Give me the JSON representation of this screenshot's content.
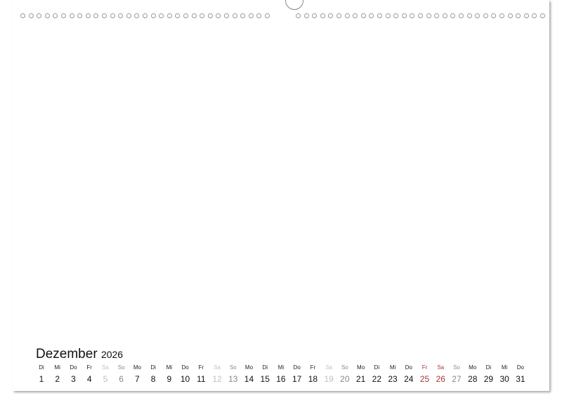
{
  "calendar": {
    "month": "Dezember",
    "year": "2026",
    "days": [
      {
        "wd": "Di",
        "d": "1",
        "type": "weekday"
      },
      {
        "wd": "Mi",
        "d": "2",
        "type": "weekday"
      },
      {
        "wd": "Do",
        "d": "3",
        "type": "weekday"
      },
      {
        "wd": "Fr",
        "d": "4",
        "type": "weekday"
      },
      {
        "wd": "Sa",
        "d": "5",
        "type": "saturday"
      },
      {
        "wd": "So",
        "d": "6",
        "type": "sunday"
      },
      {
        "wd": "Mo",
        "d": "7",
        "type": "weekday"
      },
      {
        "wd": "Di",
        "d": "8",
        "type": "weekday"
      },
      {
        "wd": "Mi",
        "d": "9",
        "type": "weekday"
      },
      {
        "wd": "Do",
        "d": "10",
        "type": "weekday"
      },
      {
        "wd": "Fr",
        "d": "11",
        "type": "weekday"
      },
      {
        "wd": "Sa",
        "d": "12",
        "type": "saturday"
      },
      {
        "wd": "So",
        "d": "13",
        "type": "sunday"
      },
      {
        "wd": "Mo",
        "d": "14",
        "type": "weekday"
      },
      {
        "wd": "Di",
        "d": "15",
        "type": "weekday"
      },
      {
        "wd": "Mi",
        "d": "16",
        "type": "weekday"
      },
      {
        "wd": "Do",
        "d": "17",
        "type": "weekday"
      },
      {
        "wd": "Fr",
        "d": "18",
        "type": "weekday"
      },
      {
        "wd": "Sa",
        "d": "19",
        "type": "saturday"
      },
      {
        "wd": "So",
        "d": "20",
        "type": "sunday"
      },
      {
        "wd": "Mo",
        "d": "21",
        "type": "weekday"
      },
      {
        "wd": "Di",
        "d": "22",
        "type": "weekday"
      },
      {
        "wd": "Mi",
        "d": "23",
        "type": "weekday"
      },
      {
        "wd": "Do",
        "d": "24",
        "type": "weekday"
      },
      {
        "wd": "Fr",
        "d": "25",
        "type": "holiday"
      },
      {
        "wd": "Sa",
        "d": "26",
        "type": "holiday"
      },
      {
        "wd": "So",
        "d": "27",
        "type": "sunday"
      },
      {
        "wd": "Mo",
        "d": "28",
        "type": "weekday"
      },
      {
        "wd": "Di",
        "d": "29",
        "type": "weekday"
      },
      {
        "wd": "Mi",
        "d": "30",
        "type": "weekday"
      },
      {
        "wd": "Do",
        "d": "31",
        "type": "weekday"
      }
    ]
  },
  "colors": {
    "holiday": "#a83838",
    "saturday": "#c0c0c0",
    "sunday": "#888888",
    "text": "#111111"
  }
}
